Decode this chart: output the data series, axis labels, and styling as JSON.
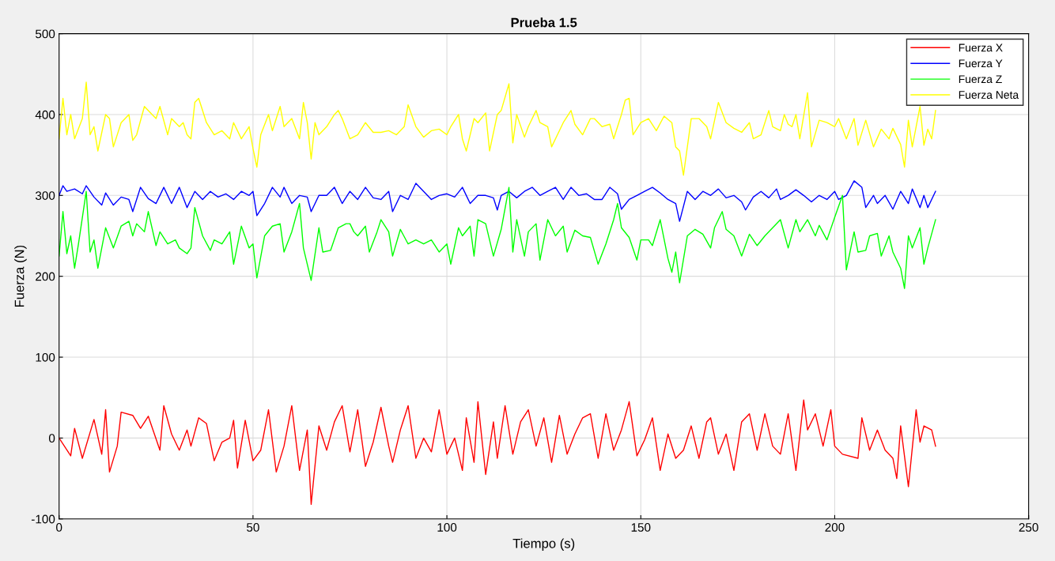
{
  "chart_data": {
    "type": "line",
    "title": "Prueba 1.5",
    "xlabel": "Tiempo (s)",
    "ylabel": "Fuerza (N)",
    "xlim": [
      0,
      250
    ],
    "xticks": [
      0,
      50,
      100,
      150,
      200,
      250
    ],
    "ylim": [
      -100,
      500
    ],
    "yticks": [
      -100,
      0,
      100,
      200,
      300,
      400,
      500
    ],
    "grid": true,
    "legend": "top right",
    "marker": "none",
    "line_style": "solid",
    "series": [
      {
        "name": "Fuerza X",
        "color": "#ff0000",
        "x": [
          0,
          3,
          4,
          6,
          9,
          11,
          12,
          13,
          15,
          16,
          19,
          21,
          23,
          26,
          27,
          29,
          31,
          33,
          34,
          36,
          38,
          40,
          42,
          44,
          45,
          46,
          48,
          50,
          52,
          54,
          56,
          58,
          60,
          62,
          64,
          65,
          67,
          69,
          71,
          73,
          75,
          77,
          79,
          81,
          83,
          85,
          86,
          88,
          90,
          92,
          94,
          96,
          98,
          100,
          102,
          104,
          105,
          107,
          108,
          110,
          112,
          113,
          115,
          117,
          119,
          121,
          123,
          125,
          127,
          129,
          131,
          133,
          135,
          137,
          139,
          141,
          143,
          145,
          147,
          149,
          151,
          153,
          155,
          157,
          159,
          161,
          163,
          165,
          167,
          168,
          170,
          172,
          174,
          176,
          178,
          180,
          182,
          184,
          186,
          188,
          190,
          192,
          193,
          195,
          197,
          199,
          200,
          202,
          206,
          207,
          209,
          211,
          213,
          215,
          216,
          217,
          219,
          221,
          222,
          223,
          225,
          226
        ],
        "values": [
          0,
          -22,
          12,
          -25,
          23,
          -20,
          35,
          -42,
          -10,
          32,
          28,
          12,
          27,
          -15,
          40,
          5,
          -15,
          10,
          -10,
          25,
          18,
          -28,
          -5,
          0,
          22,
          -37,
          22,
          -28,
          -15,
          35,
          -42,
          -10,
          40,
          -40,
          10,
          -82,
          15,
          -15,
          20,
          40,
          -17,
          35,
          -35,
          -5,
          38,
          -10,
          -30,
          10,
          40,
          -25,
          0,
          -17,
          35,
          -20,
          0,
          -40,
          25,
          -30,
          45,
          -45,
          20,
          -25,
          40,
          -20,
          20,
          35,
          -10,
          25,
          -30,
          28,
          -20,
          5,
          25,
          30,
          -25,
          30,
          -15,
          10,
          45,
          -22,
          -2,
          25,
          -40,
          5,
          -25,
          -15,
          15,
          -25,
          20,
          25,
          -20,
          5,
          -40,
          20,
          30,
          -15,
          30,
          -10,
          -20,
          30,
          -40,
          47,
          10,
          30,
          -10,
          35,
          -10,
          -20,
          -25,
          25,
          -15,
          10,
          -15,
          -25,
          -50,
          15,
          -60,
          35,
          -5,
          15,
          10,
          -10
        ]
      },
      {
        "name": "Fuerza Y",
        "color": "#0000ff",
        "x": [
          0,
          1,
          2,
          4,
          6,
          7,
          9,
          11,
          12,
          14,
          16,
          18,
          19,
          21,
          23,
          25,
          27,
          29,
          31,
          33,
          35,
          37,
          39,
          41,
          43,
          45,
          47,
          49,
          50,
          51,
          53,
          55,
          57,
          58,
          60,
          62,
          64,
          65,
          67,
          69,
          71,
          73,
          75,
          77,
          79,
          81,
          83,
          85,
          86,
          88,
          90,
          92,
          94,
          96,
          98,
          100,
          102,
          104,
          106,
          108,
          110,
          112,
          113,
          114,
          116,
          118,
          120,
          122,
          124,
          126,
          128,
          130,
          132,
          134,
          136,
          138,
          140,
          142,
          144,
          145,
          147,
          149,
          151,
          153,
          155,
          157,
          159,
          160,
          162,
          164,
          166,
          168,
          170,
          172,
          174,
          176,
          177,
          179,
          181,
          183,
          185,
          186,
          188,
          190,
          192,
          194,
          196,
          198,
          200,
          201,
          203,
          205,
          207,
          208,
          210,
          211,
          213,
          215,
          217,
          219,
          220,
          222,
          223,
          224,
          226
        ],
        "values": [
          300,
          312,
          305,
          308,
          302,
          312,
          298,
          288,
          303,
          288,
          298,
          295,
          280,
          310,
          296,
          290,
          310,
          290,
          310,
          285,
          305,
          295,
          305,
          298,
          302,
          295,
          305,
          300,
          305,
          275,
          290,
          310,
          298,
          310,
          290,
          300,
          298,
          280,
          300,
          300,
          310,
          290,
          305,
          295,
          310,
          297,
          295,
          305,
          280,
          300,
          295,
          315,
          305,
          295,
          300,
          302,
          298,
          310,
          290,
          300,
          300,
          297,
          282,
          300,
          305,
          297,
          305,
          310,
          300,
          305,
          310,
          295,
          310,
          300,
          302,
          295,
          295,
          310,
          302,
          283,
          295,
          300,
          305,
          310,
          303,
          295,
          290,
          268,
          305,
          295,
          305,
          300,
          308,
          297,
          300,
          292,
          282,
          298,
          305,
          297,
          308,
          295,
          300,
          307,
          300,
          292,
          300,
          295,
          305,
          295,
          300,
          318,
          310,
          285,
          300,
          290,
          300,
          283,
          305,
          290,
          308,
          285,
          300,
          285,
          305
        ]
      },
      {
        "name": "Fuerza Z",
        "color": "#00ff00",
        "x": [
          0,
          1,
          2,
          3,
          4,
          5,
          7,
          8,
          9,
          10,
          12,
          14,
          16,
          18,
          19,
          20,
          22,
          23,
          25,
          26,
          28,
          30,
          31,
          33,
          34,
          35,
          37,
          39,
          40,
          42,
          44,
          45,
          47,
          49,
          50,
          51,
          53,
          55,
          57,
          58,
          60,
          62,
          63,
          64,
          65,
          67,
          68,
          70,
          72,
          74,
          75,
          76,
          77,
          79,
          80,
          82,
          83,
          85,
          86,
          88,
          90,
          92,
          94,
          96,
          98,
          100,
          101,
          103,
          104,
          106,
          107,
          108,
          110,
          112,
          114,
          116,
          117,
          118,
          120,
          121,
          123,
          124,
          126,
          128,
          130,
          131,
          133,
          135,
          137,
          139,
          141,
          143,
          144,
          145,
          147,
          149,
          150,
          152,
          153,
          155,
          157,
          158,
          159,
          160,
          162,
          164,
          166,
          168,
          169,
          171,
          172,
          174,
          176,
          178,
          180,
          182,
          184,
          186,
          188,
          190,
          191,
          193,
          195,
          196,
          198,
          200,
          202,
          203,
          205,
          206,
          208,
          209,
          211,
          212,
          214,
          215,
          217,
          218,
          219,
          220,
          222,
          223,
          224,
          226
        ],
        "values": [
          225,
          280,
          228,
          250,
          210,
          240,
          305,
          230,
          245,
          210,
          260,
          235,
          262,
          268,
          250,
          265,
          255,
          280,
          238,
          255,
          240,
          245,
          235,
          228,
          235,
          285,
          250,
          232,
          245,
          240,
          255,
          215,
          262,
          235,
          240,
          198,
          250,
          262,
          265,
          230,
          255,
          290,
          235,
          215,
          195,
          260,
          230,
          232,
          260,
          265,
          265,
          255,
          250,
          262,
          230,
          255,
          270,
          255,
          225,
          258,
          240,
          245,
          240,
          245,
          230,
          240,
          215,
          260,
          250,
          262,
          225,
          270,
          265,
          225,
          258,
          310,
          230,
          270,
          225,
          255,
          265,
          220,
          270,
          250,
          262,
          230,
          257,
          250,
          248,
          215,
          240,
          270,
          290,
          260,
          248,
          220,
          245,
          245,
          238,
          270,
          222,
          205,
          230,
          192,
          250,
          258,
          252,
          235,
          260,
          280,
          258,
          250,
          225,
          252,
          238,
          250,
          260,
          270,
          235,
          270,
          255,
          270,
          250,
          263,
          245,
          273,
          300,
          208,
          255,
          230,
          232,
          250,
          253,
          225,
          250,
          230,
          210,
          185,
          250,
          235,
          260,
          215,
          235,
          270
        ]
      },
      {
        "name": "Fuerza Neta",
        "color": "#ffff00",
        "x": [
          0,
          1,
          2,
          3,
          4,
          6,
          7,
          8,
          9,
          10,
          12,
          13,
          14,
          16,
          18,
          19,
          20,
          22,
          24,
          25,
          26,
          28,
          29,
          31,
          32,
          33,
          34,
          35,
          36,
          38,
          40,
          42,
          44,
          45,
          47,
          49,
          50,
          51,
          52,
          54,
          55,
          57,
          58,
          60,
          62,
          63,
          64,
          65,
          66,
          67,
          69,
          71,
          72,
          73,
          75,
          77,
          79,
          81,
          83,
          85,
          87,
          89,
          90,
          92,
          94,
          96,
          98,
          100,
          101,
          103,
          104,
          105,
          107,
          108,
          110,
          111,
          113,
          114,
          116,
          117,
          118,
          120,
          121,
          123,
          124,
          126,
          127,
          129,
          130,
          132,
          133,
          135,
          137,
          138,
          140,
          142,
          143,
          145,
          146,
          147,
          148,
          150,
          152,
          154,
          156,
          158,
          159,
          160,
          161,
          163,
          165,
          167,
          168,
          170,
          172,
          174,
          176,
          178,
          179,
          181,
          183,
          184,
          186,
          187,
          188,
          189,
          190,
          191,
          193,
          194,
          196,
          198,
          200,
          201,
          203,
          205,
          206,
          208,
          210,
          212,
          214,
          215,
          217,
          218,
          219,
          220,
          222,
          223,
          224,
          225,
          226
        ],
        "values": [
          370,
          420,
          375,
          400,
          370,
          395,
          440,
          375,
          385,
          355,
          400,
          395,
          360,
          390,
          400,
          368,
          375,
          410,
          400,
          395,
          410,
          375,
          395,
          385,
          390,
          375,
          370,
          415,
          420,
          390,
          375,
          380,
          370,
          390,
          370,
          385,
          358,
          335,
          375,
          400,
          380,
          410,
          385,
          395,
          370,
          415,
          390,
          345,
          390,
          375,
          385,
          400,
          405,
          395,
          370,
          375,
          390,
          378,
          378,
          380,
          375,
          385,
          412,
          385,
          372,
          380,
          382,
          375,
          385,
          400,
          370,
          355,
          395,
          390,
          402,
          355,
          400,
          405,
          438,
          365,
          400,
          372,
          385,
          405,
          390,
          385,
          360,
          380,
          390,
          405,
          388,
          375,
          395,
          395,
          385,
          388,
          370,
          400,
          418,
          420,
          375,
          390,
          395,
          380,
          398,
          390,
          360,
          355,
          325,
          395,
          395,
          385,
          370,
          415,
          390,
          383,
          378,
          390,
          370,
          375,
          405,
          385,
          380,
          400,
          388,
          385,
          400,
          370,
          427,
          360,
          393,
          390,
          385,
          395,
          370,
          395,
          362,
          393,
          360,
          382,
          370,
          383,
          363,
          335,
          393,
          360,
          410,
          362,
          382,
          370,
          405
        ]
      }
    ]
  }
}
